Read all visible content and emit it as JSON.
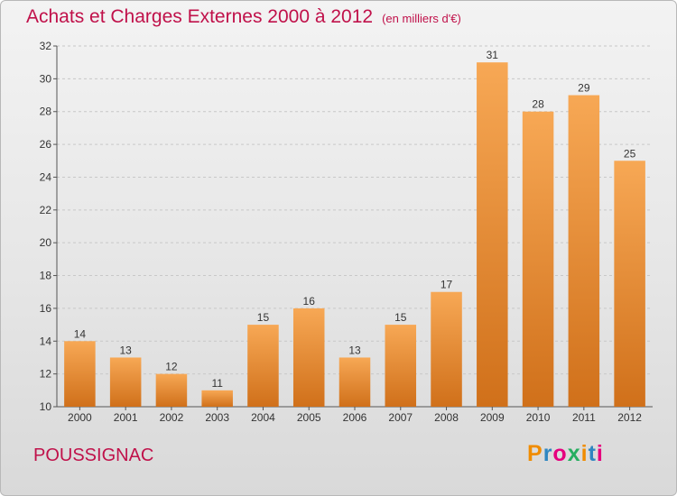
{
  "header": {
    "title": "Achats et Charges Externes 2000 à 2012",
    "subtitle": "(en milliers d'€)"
  },
  "footer": {
    "city": "POUSSIGNAC",
    "logo_text": "Proxiti",
    "logo_colors": [
      "#f08c00",
      "#2e86c1",
      "#e6007e",
      "#27ae60",
      "#f08c00",
      "#2e86c1",
      "#e6007e"
    ]
  },
  "chart_data": {
    "type": "bar",
    "title": "Achats et Charges Externes 2000 à 2012",
    "subtitle": "(en milliers d'€)",
    "categories": [
      "2000",
      "2001",
      "2002",
      "2003",
      "2004",
      "2005",
      "2006",
      "2007",
      "2008",
      "2009",
      "2010",
      "2011",
      "2012"
    ],
    "values": [
      14,
      13,
      12,
      11,
      15,
      16,
      13,
      15,
      17,
      31,
      28,
      29,
      25
    ],
    "ylim": [
      10,
      32
    ],
    "yticks": [
      10,
      12,
      14,
      16,
      18,
      20,
      22,
      24,
      26,
      28,
      30,
      32
    ],
    "grid": true,
    "bar_color_light": "#f7a855",
    "bar_color_dark": "#d0701a"
  }
}
